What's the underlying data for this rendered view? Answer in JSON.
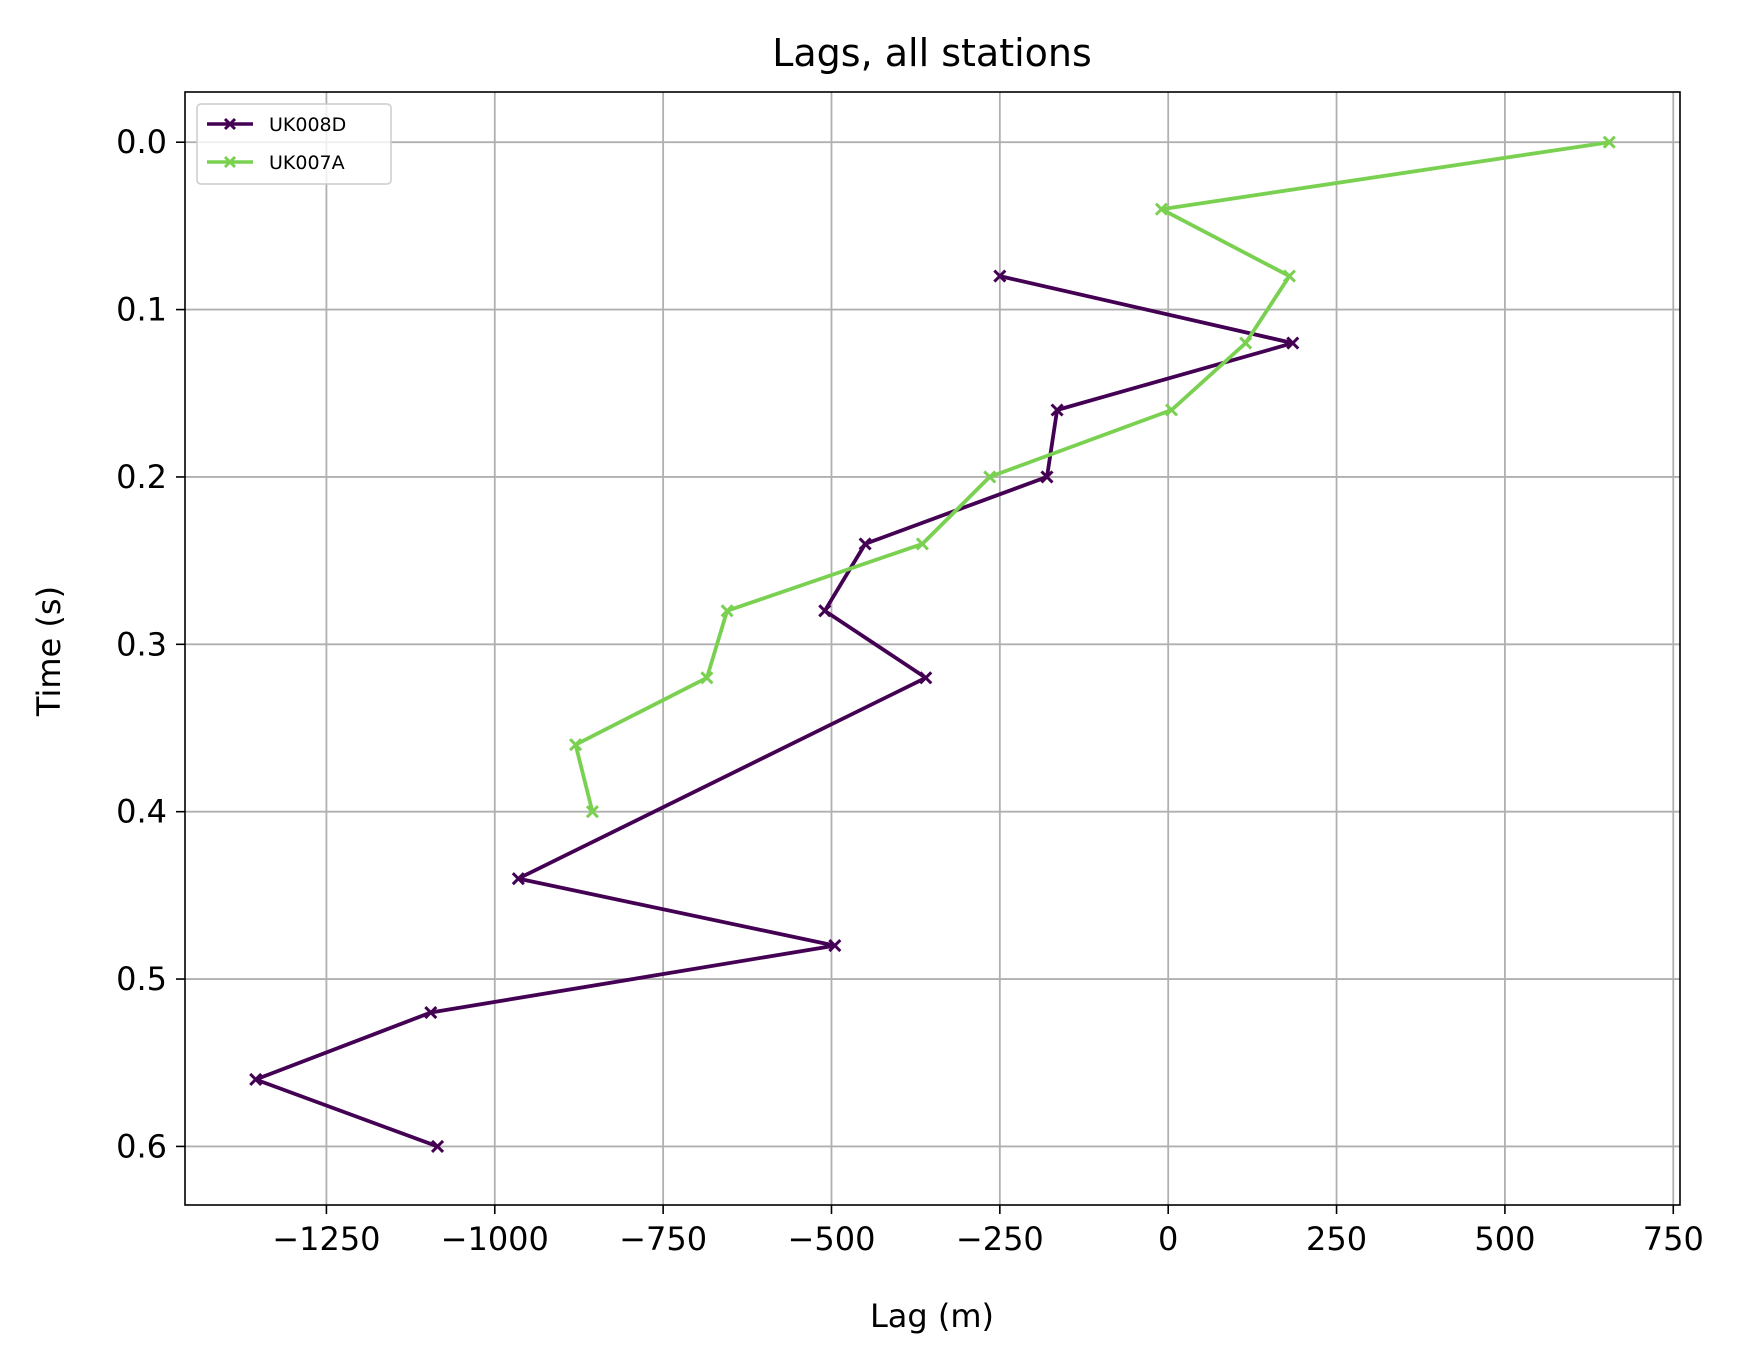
{
  "chart_data": {
    "type": "line",
    "title": "Lags, all stations",
    "xlabel": "Lag (m)",
    "ylabel": "Time (s)",
    "xlim": [
      -1460,
      760
    ],
    "ylim": [
      0.635,
      -0.03
    ],
    "y_inverted": true,
    "grid": true,
    "legend_position": "upper-left",
    "xticks": [
      -1250,
      -1000,
      -750,
      -500,
      -250,
      0,
      250,
      500,
      750
    ],
    "xtick_labels": [
      "−1250",
      "−1000",
      "−750",
      "−500",
      "−250",
      "0",
      "250",
      "500",
      "750"
    ],
    "yticks": [
      0.0,
      0.1,
      0.2,
      0.3,
      0.4,
      0.5,
      0.6
    ],
    "ytick_labels": [
      "0.0",
      "0.1",
      "0.2",
      "0.3",
      "0.4",
      "0.5",
      "0.6"
    ],
    "marker": "x",
    "series": [
      {
        "name": "UK008D",
        "color": "#440154",
        "points": [
          [
            -250,
            0.08
          ],
          [
            185,
            0.12
          ],
          [
            -165,
            0.16
          ],
          [
            -180,
            0.2
          ],
          [
            -450,
            0.24
          ],
          [
            -510,
            0.28
          ],
          [
            -360,
            0.32
          ],
          [
            -965,
            0.44
          ],
          [
            -495,
            0.48
          ],
          [
            -1095,
            0.52
          ],
          [
            -1355,
            0.56
          ],
          [
            -1085,
            0.6
          ]
        ]
      },
      {
        "name": "UK007A",
        "color": "#7ad151",
        "points": [
          [
            655,
            0.0
          ],
          [
            -10,
            0.04
          ],
          [
            180,
            0.08
          ],
          [
            115,
            0.12
          ],
          [
            5,
            0.16
          ],
          [
            -265,
            0.2
          ],
          [
            -365,
            0.24
          ],
          [
            -655,
            0.28
          ],
          [
            -685,
            0.32
          ],
          [
            -880,
            0.36
          ],
          [
            -855,
            0.4
          ]
        ]
      }
    ]
  }
}
